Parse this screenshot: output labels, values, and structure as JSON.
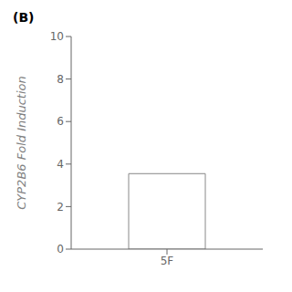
{
  "chart_data": {
    "type": "bar",
    "title": "(B)",
    "categories": [
      "5F"
    ],
    "values": [
      3.55
    ],
    "color": "#ffffff",
    "ylabel": "CYP2B6 Fold Induction",
    "ylim": [
      0,
      10
    ],
    "yticks": [
      0,
      2,
      4,
      6,
      8,
      10
    ],
    "grid": false
  }
}
